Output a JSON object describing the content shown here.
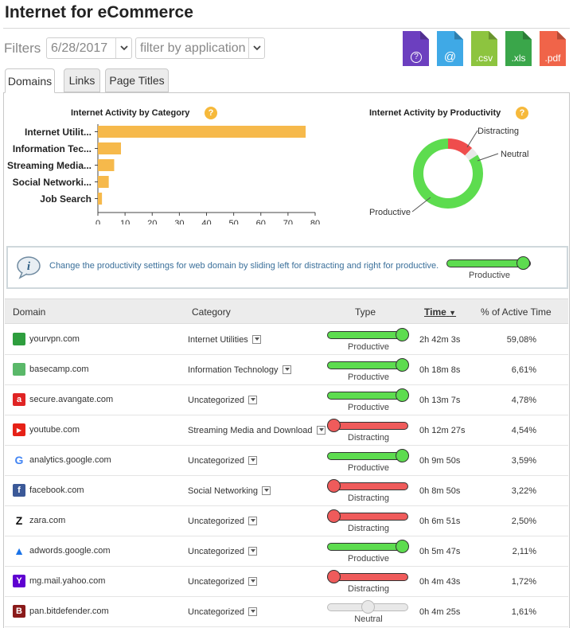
{
  "page": {
    "title": "Internet for eCommerce"
  },
  "filters": {
    "label": "Filters",
    "date_value": "6/28/2017",
    "app_placeholder": "filter by application"
  },
  "exports": [
    {
      "name": "help-export",
      "label": "?",
      "color": "#6c3fbf",
      "icon": "question-icon"
    },
    {
      "name": "email-export",
      "label": "@",
      "color": "#3fa9e6",
      "icon": "at-icon"
    },
    {
      "name": "csv-export",
      "label": ".csv",
      "color": "#8dc43f",
      "icon": "csv-file-icon"
    },
    {
      "name": "xls-export",
      "label": ".xls",
      "color": "#3aa64a",
      "icon": "xls-file-icon"
    },
    {
      "name": "pdf-export",
      "label": ".pdf",
      "color": "#f06449",
      "icon": "pdf-file-icon"
    }
  ],
  "tabs": [
    {
      "label": "Domains",
      "active": true
    },
    {
      "label": "Links",
      "active": false
    },
    {
      "label": "Page Titles",
      "active": false
    }
  ],
  "chart_data": [
    {
      "type": "bar",
      "orientation": "horizontal",
      "title": "Internet Activity by Category",
      "categories": [
        "Internet Utilit...",
        "Information Tec...",
        "Streaming Media...",
        "Social Networki...",
        "Job Search"
      ],
      "values": [
        76.5,
        8.5,
        6,
        4,
        1.5
      ],
      "xlim": [
        0,
        80
      ],
      "xticks": [
        "0",
        "10",
        "20",
        "30",
        "40",
        "50",
        "60",
        "70",
        "80"
      ],
      "bar_color": "#f6b94b"
    },
    {
      "type": "pie",
      "donut": true,
      "title": "Internet Activity by Productivity",
      "slices": [
        {
          "name": "Distracting",
          "value": 0.12,
          "color": "#ef4d4d"
        },
        {
          "name": "Neutral",
          "value": 0.04,
          "color": "#e8e8e8"
        },
        {
          "name": "Productive",
          "value": 0.84,
          "color": "#5ddc4f"
        }
      ]
    }
  ],
  "info": {
    "text": "Change the productivity settings for web domain by sliding left for distracting and right for productive.",
    "slider_label": "Productive"
  },
  "table": {
    "headers": {
      "domain": "Domain",
      "category": "Category",
      "type": "Type",
      "time": "Time",
      "pct": "% of Active Time"
    },
    "rows": [
      {
        "domain": "yourvpn.com",
        "icon": "yourvpn-icon",
        "fav_color": "#2e9e3e",
        "fav_char": "",
        "category": "Internet Utilities",
        "type": "Productive",
        "time": "2h 42m 3s",
        "pct": "59,08%"
      },
      {
        "domain": "basecamp.com",
        "icon": "basecamp-icon",
        "fav_color": "#5ab869",
        "fav_char": "",
        "category": "Information Technology",
        "type": "Productive",
        "time": "0h 18m 8s",
        "pct": "6,61%"
      },
      {
        "domain": "secure.avangate.com",
        "icon": "avangate-icon",
        "fav_color": "#e02424",
        "fav_char": "a",
        "category": "Uncategorized",
        "type": "Productive",
        "time": "0h 13m 7s",
        "pct": "4,78%"
      },
      {
        "domain": "youtube.com",
        "icon": "youtube-icon",
        "fav_color": "#e62117",
        "fav_char": "▶",
        "category": "Streaming Media and Download",
        "type": "Distracting",
        "time": "0h 12m 27s",
        "pct": "4,54%"
      },
      {
        "domain": "analytics.google.com",
        "icon": "google-icon",
        "fav_color": "#ffffff",
        "fav_char": "G",
        "category": "Uncategorized",
        "type": "Productive",
        "time": "0h 9m 50s",
        "pct": "3,59%"
      },
      {
        "domain": "facebook.com",
        "icon": "facebook-icon",
        "fav_color": "#3b5998",
        "fav_char": "f",
        "category": "Social Networking",
        "type": "Distracting",
        "time": "0h 8m 50s",
        "pct": "3,22%"
      },
      {
        "domain": "zara.com",
        "icon": "zara-icon",
        "fav_color": "#ffffff",
        "fav_char": "Z",
        "category": "Uncategorized",
        "type": "Distracting",
        "time": "0h 6m 51s",
        "pct": "2,50%"
      },
      {
        "domain": "adwords.google.com",
        "icon": "adwords-icon",
        "fav_color": "#ffffff",
        "fav_char": "▲",
        "category": "Uncategorized",
        "type": "Productive",
        "time": "0h 5m 47s",
        "pct": "2,11%"
      },
      {
        "domain": "mg.mail.yahoo.com",
        "icon": "yahoo-icon",
        "fav_color": "#5f01d1",
        "fav_char": "Y",
        "category": "Uncategorized",
        "type": "Distracting",
        "time": "0h 4m 43s",
        "pct": "1,72%"
      },
      {
        "domain": "pan.bitdefender.com",
        "icon": "bitdefender-icon",
        "fav_color": "#8a1a1a",
        "fav_char": "B",
        "category": "Uncategorized",
        "type": "Neutral",
        "time": "0h 4m 25s",
        "pct": "1,61%"
      }
    ]
  },
  "colors": {
    "productive": "#5ddc4f",
    "distracting": "#ef5b5b",
    "neutral": "#e8e8e8",
    "accent": "#f6b94b"
  }
}
